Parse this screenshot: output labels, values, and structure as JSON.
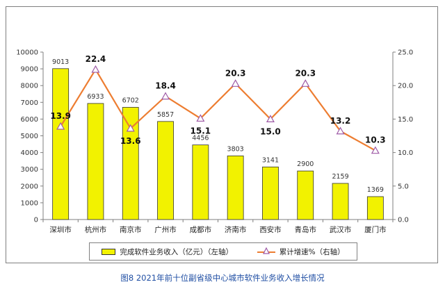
{
  "chart_data": {
    "type": "bar+line",
    "categories": [
      "深圳市",
      "杭州市",
      "南京市",
      "广州市",
      "成都市",
      "济南市",
      "西安市",
      "青岛市",
      "武汉市",
      "厦门市"
    ],
    "series": [
      {
        "name": "完成软件业务收入（亿元）（左轴）",
        "type": "bar",
        "axis": "left",
        "values": [
          9013,
          6933,
          6702,
          5857,
          4456,
          3803,
          3141,
          2900,
          2159,
          1369
        ],
        "labels": [
          "9013",
          "6933",
          "6702",
          "5857",
          "4456",
          "3803",
          "3141",
          "2900",
          "2159",
          "1369"
        ],
        "color": "#f2f200"
      },
      {
        "name": "累计增速%（右轴）",
        "type": "line",
        "axis": "right",
        "values": [
          13.9,
          22.4,
          13.6,
          18.4,
          15.1,
          20.3,
          15.0,
          20.3,
          13.2,
          10.3
        ],
        "labels": [
          "13.9",
          "22.4",
          "13.6",
          "18.4",
          "15.1",
          "20.3",
          "15.0",
          "20.3",
          "13.2",
          "10.3"
        ],
        "color": "#ed7d31",
        "marker": "triangle-open",
        "marker_color": "#9e5aa6"
      }
    ],
    "y_left": {
      "range": [
        0,
        10000
      ],
      "ticks": [
        "0",
        "1000",
        "2000",
        "3000",
        "4000",
        "5000",
        "6000",
        "7000",
        "8000",
        "9000",
        "10000"
      ]
    },
    "y_right": {
      "range": [
        0,
        25
      ],
      "ticks": [
        "0.0",
        "5.0",
        "10.0",
        "15.0",
        "20.0",
        "25.0"
      ]
    },
    "grid": false,
    "legend_position": "bottom",
    "title": "图8 2021年前十位副省级中心城市软件业务收入增长情况"
  },
  "legend": {
    "bar_label": "完成软件业务收入（亿元）（左轴）",
    "line_label": "累计增速%（右轴）"
  },
  "colors": {
    "bar": "#f2f200",
    "line": "#ed7d31",
    "marker": "#9e5aa6",
    "caption": "#1f4ea3"
  }
}
